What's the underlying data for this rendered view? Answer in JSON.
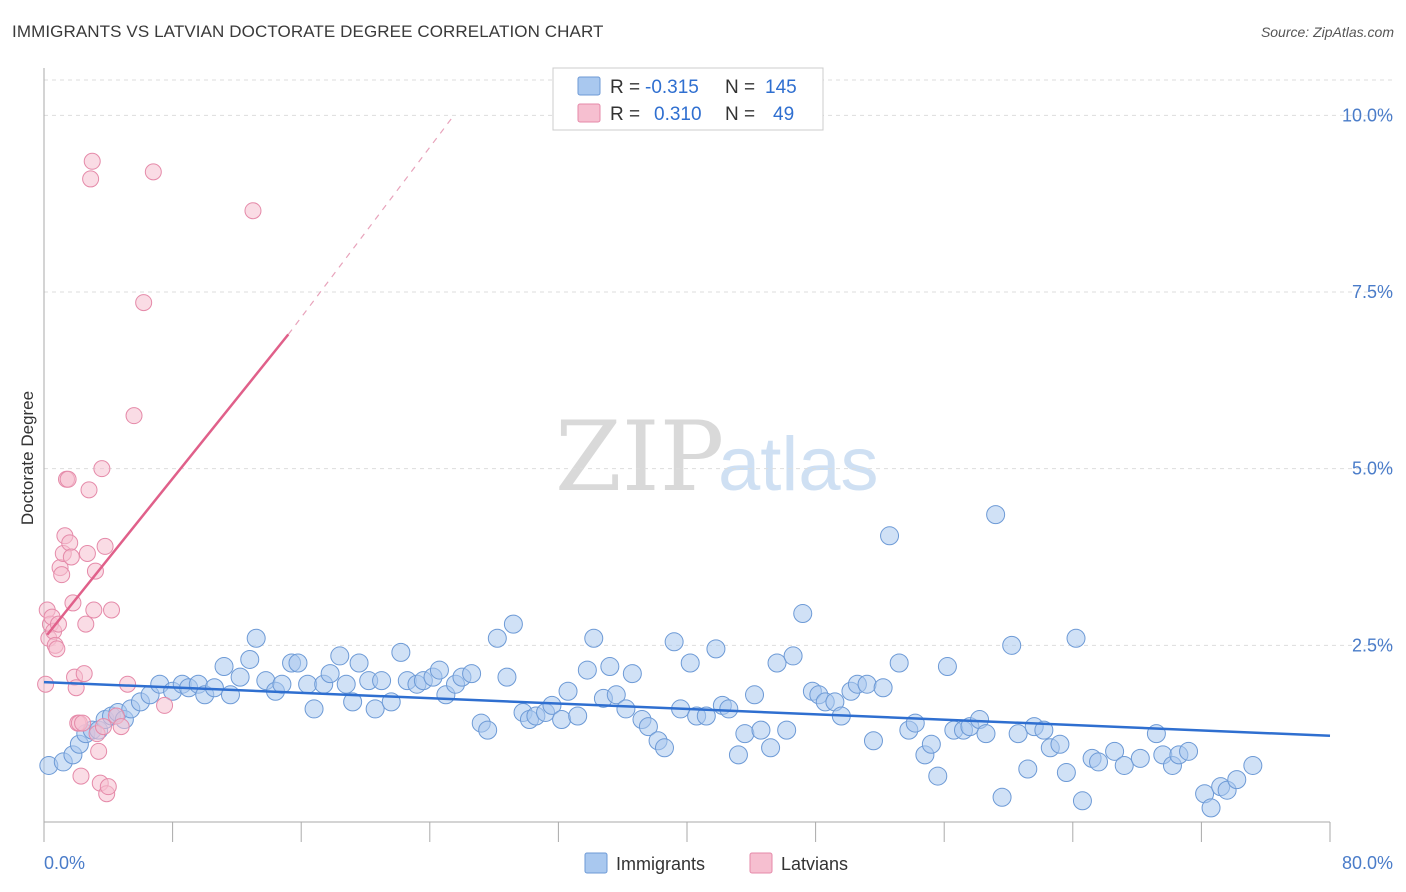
{
  "title": "IMMIGRANTS VS LATVIAN DOCTORATE DEGREE CORRELATION CHART",
  "source": "Source: ZipAtlas.com",
  "watermark": {
    "zip": "ZIP",
    "atlas": "atlas"
  },
  "colors": {
    "immigrants_fill": "#a9c8ef",
    "immigrants_stroke": "#6d9ad6",
    "immigrants_line": "#2f6fd0",
    "latvians_fill": "#f6bfd0",
    "latvians_stroke": "#e58aa9",
    "latvians_line": "#e0608a",
    "grid": "#dddddd",
    "tick_text": "#4a7cc9"
  },
  "legend": {
    "rows": [
      {
        "r_label": "R = ",
        "r_value": "-0.315",
        "n_label": "N = ",
        "n_value": "145"
      },
      {
        "r_label": "R = ",
        "r_value": "0.310",
        "n_label": "N = ",
        "n_value": "49"
      }
    ]
  },
  "chart_data": {
    "type": "scatter",
    "title": "IMMIGRANTS VS LATVIAN DOCTORATE DEGREE CORRELATION CHART",
    "xlabel": "",
    "ylabel": "Doctorate Degree",
    "xlim": [
      0,
      80
    ],
    "ylim": [
      0,
      10.5
    ],
    "x_tick_labels": [
      "0.0%",
      "80.0%"
    ],
    "y_ticks": [
      2.5,
      5.0,
      7.5,
      10.0
    ],
    "y_tick_labels": [
      "2.5%",
      "5.0%",
      "7.5%",
      "10.0%"
    ],
    "grid": true,
    "legend_position": "top-center",
    "series": [
      {
        "name": "Immigrants",
        "r": -0.315,
        "n": 145,
        "trend": {
          "x": [
            0,
            80
          ],
          "y": [
            1.98,
            1.22
          ]
        },
        "points": [
          [
            0.3,
            0.8
          ],
          [
            1.2,
            0.85
          ],
          [
            1.8,
            0.95
          ],
          [
            2.2,
            1.1
          ],
          [
            2.6,
            1.25
          ],
          [
            3.0,
            1.3
          ],
          [
            3.4,
            1.3
          ],
          [
            3.8,
            1.45
          ],
          [
            4.2,
            1.5
          ],
          [
            4.6,
            1.55
          ],
          [
            5.0,
            1.45
          ],
          [
            5.4,
            1.6
          ],
          [
            6.0,
            1.7
          ],
          [
            6.6,
            1.8
          ],
          [
            7.2,
            1.95
          ],
          [
            8.0,
            1.85
          ],
          [
            8.6,
            1.95
          ],
          [
            9.0,
            1.9
          ],
          [
            9.6,
            1.95
          ],
          [
            10.0,
            1.8
          ],
          [
            10.6,
            1.9
          ],
          [
            11.2,
            2.2
          ],
          [
            11.6,
            1.8
          ],
          [
            12.2,
            2.05
          ],
          [
            12.8,
            2.3
          ],
          [
            13.2,
            2.6
          ],
          [
            13.8,
            2.0
          ],
          [
            14.4,
            1.85
          ],
          [
            14.8,
            1.95
          ],
          [
            15.4,
            2.25
          ],
          [
            15.8,
            2.25
          ],
          [
            16.4,
            1.95
          ],
          [
            16.8,
            1.6
          ],
          [
            17.4,
            1.95
          ],
          [
            17.8,
            2.1
          ],
          [
            18.4,
            2.35
          ],
          [
            18.8,
            1.95
          ],
          [
            19.2,
            1.7
          ],
          [
            19.6,
            2.25
          ],
          [
            20.2,
            2.0
          ],
          [
            20.6,
            1.6
          ],
          [
            21.0,
            2.0
          ],
          [
            21.6,
            1.7
          ],
          [
            22.2,
            2.4
          ],
          [
            22.6,
            2.0
          ],
          [
            23.2,
            1.95
          ],
          [
            23.6,
            2.0
          ],
          [
            24.2,
            2.05
          ],
          [
            24.6,
            2.15
          ],
          [
            25.0,
            1.8
          ],
          [
            25.6,
            1.95
          ],
          [
            26.0,
            2.05
          ],
          [
            26.6,
            2.1
          ],
          [
            27.2,
            1.4
          ],
          [
            27.6,
            1.3
          ],
          [
            28.2,
            2.6
          ],
          [
            28.8,
            2.05
          ],
          [
            29.2,
            2.8
          ],
          [
            29.8,
            1.55
          ],
          [
            30.2,
            1.45
          ],
          [
            30.6,
            1.5
          ],
          [
            31.2,
            1.55
          ],
          [
            31.6,
            1.65
          ],
          [
            32.2,
            1.45
          ],
          [
            32.6,
            1.85
          ],
          [
            33.2,
            1.5
          ],
          [
            33.8,
            2.15
          ],
          [
            34.2,
            2.6
          ],
          [
            34.8,
            1.75
          ],
          [
            35.2,
            2.2
          ],
          [
            35.6,
            1.8
          ],
          [
            36.2,
            1.6
          ],
          [
            36.6,
            2.1
          ],
          [
            37.2,
            1.45
          ],
          [
            37.6,
            1.35
          ],
          [
            38.2,
            1.15
          ],
          [
            38.6,
            1.05
          ],
          [
            39.2,
            2.55
          ],
          [
            39.6,
            1.6
          ],
          [
            40.2,
            2.25
          ],
          [
            40.6,
            1.5
          ],
          [
            41.2,
            1.5
          ],
          [
            41.8,
            2.45
          ],
          [
            42.2,
            1.65
          ],
          [
            42.6,
            1.6
          ],
          [
            43.2,
            0.95
          ],
          [
            43.6,
            1.25
          ],
          [
            44.2,
            1.8
          ],
          [
            44.6,
            1.3
          ],
          [
            45.2,
            1.05
          ],
          [
            45.6,
            2.25
          ],
          [
            46.2,
            1.3
          ],
          [
            46.6,
            2.35
          ],
          [
            47.2,
            2.95
          ],
          [
            47.8,
            1.85
          ],
          [
            48.2,
            1.8
          ],
          [
            48.6,
            1.7
          ],
          [
            49.2,
            1.7
          ],
          [
            49.6,
            1.5
          ],
          [
            50.2,
            1.85
          ],
          [
            50.6,
            1.95
          ],
          [
            51.2,
            1.95
          ],
          [
            51.6,
            1.15
          ],
          [
            52.2,
            1.9
          ],
          [
            52.6,
            4.05
          ],
          [
            53.2,
            2.25
          ],
          [
            53.8,
            1.3
          ],
          [
            54.2,
            1.4
          ],
          [
            54.8,
            0.95
          ],
          [
            55.2,
            1.1
          ],
          [
            55.6,
            0.65
          ],
          [
            56.2,
            2.2
          ],
          [
            56.6,
            1.3
          ],
          [
            57.2,
            1.3
          ],
          [
            57.6,
            1.35
          ],
          [
            58.2,
            1.45
          ],
          [
            58.6,
            1.25
          ],
          [
            59.2,
            4.35
          ],
          [
            59.6,
            0.35
          ],
          [
            60.2,
            2.5
          ],
          [
            60.6,
            1.25
          ],
          [
            61.2,
            0.75
          ],
          [
            61.6,
            1.35
          ],
          [
            62.2,
            1.3
          ],
          [
            62.6,
            1.05
          ],
          [
            63.2,
            1.1
          ],
          [
            63.6,
            0.7
          ],
          [
            64.2,
            2.6
          ],
          [
            64.6,
            0.3
          ],
          [
            65.2,
            0.9
          ],
          [
            65.6,
            0.85
          ],
          [
            66.6,
            1.0
          ],
          [
            67.2,
            0.8
          ],
          [
            68.2,
            0.9
          ],
          [
            69.2,
            1.25
          ],
          [
            69.6,
            0.95
          ],
          [
            70.2,
            0.8
          ],
          [
            70.6,
            0.95
          ],
          [
            71.2,
            1.0
          ],
          [
            72.2,
            0.4
          ],
          [
            72.6,
            0.2
          ],
          [
            73.2,
            0.5
          ],
          [
            73.6,
            0.45
          ],
          [
            74.2,
            0.6
          ],
          [
            75.2,
            0.8
          ]
        ]
      },
      {
        "name": "Latvians",
        "r": 0.31,
        "n": 49,
        "trend": {
          "x": [
            0.2,
            15.2
          ],
          "y": [
            2.65,
            6.9
          ]
        },
        "trend_dashed_extension": {
          "x": [
            15.2,
            25.5
          ],
          "y": [
            6.9,
            10.0
          ]
        },
        "points": [
          [
            0.1,
            1.95
          ],
          [
            0.2,
            3.0
          ],
          [
            0.3,
            2.6
          ],
          [
            0.4,
            2.8
          ],
          [
            0.5,
            2.9
          ],
          [
            0.6,
            2.7
          ],
          [
            0.7,
            2.5
          ],
          [
            0.8,
            2.45
          ],
          [
            0.9,
            2.8
          ],
          [
            1.0,
            3.6
          ],
          [
            1.1,
            3.5
          ],
          [
            1.2,
            3.8
          ],
          [
            1.3,
            4.05
          ],
          [
            1.4,
            4.85
          ],
          [
            1.5,
            4.85
          ],
          [
            1.6,
            3.95
          ],
          [
            1.7,
            3.75
          ],
          [
            1.8,
            3.1
          ],
          [
            1.9,
            2.05
          ],
          [
            2.0,
            1.9
          ],
          [
            2.1,
            1.4
          ],
          [
            2.2,
            1.4
          ],
          [
            2.3,
            0.65
          ],
          [
            2.4,
            1.4
          ],
          [
            2.5,
            2.1
          ],
          [
            2.6,
            2.8
          ],
          [
            2.7,
            3.8
          ],
          [
            2.8,
            4.7
          ],
          [
            2.9,
            9.1
          ],
          [
            3.0,
            9.35
          ],
          [
            3.1,
            3.0
          ],
          [
            3.2,
            3.55
          ],
          [
            3.3,
            1.25
          ],
          [
            3.4,
            1.0
          ],
          [
            3.5,
            0.55
          ],
          [
            3.6,
            5.0
          ],
          [
            3.7,
            1.35
          ],
          [
            3.8,
            3.9
          ],
          [
            3.9,
            0.4
          ],
          [
            4.0,
            0.5
          ],
          [
            4.2,
            3.0
          ],
          [
            4.5,
            1.5
          ],
          [
            4.8,
            1.35
          ],
          [
            5.2,
            1.95
          ],
          [
            5.6,
            5.75
          ],
          [
            6.2,
            7.35
          ],
          [
            6.8,
            9.2
          ],
          [
            7.5,
            1.65
          ],
          [
            13.0,
            8.65
          ]
        ]
      }
    ]
  },
  "bottom_legend": [
    {
      "label": "Immigrants"
    },
    {
      "label": "Latvians"
    }
  ]
}
